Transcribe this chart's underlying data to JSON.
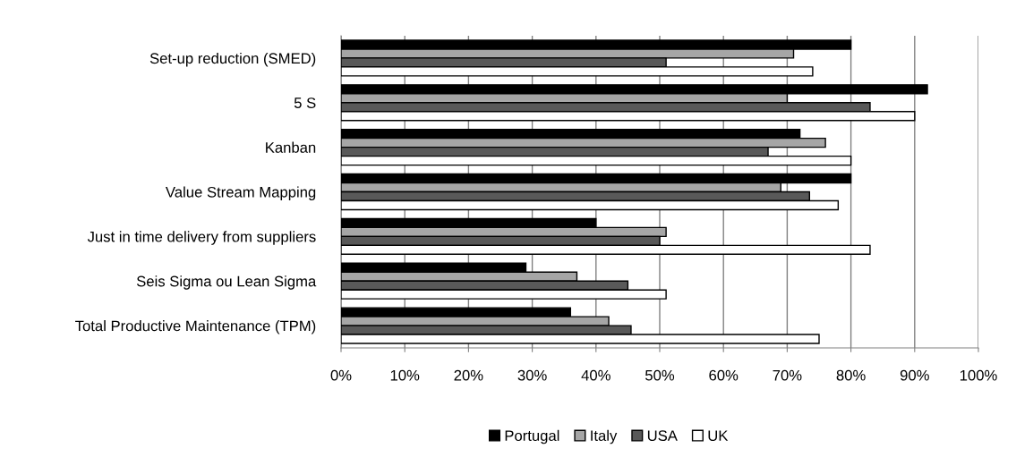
{
  "chart_data": {
    "type": "bar",
    "orientation": "horizontal",
    "categories": [
      "Set-up reduction (SMED)",
      "5 S",
      "Kanban",
      "Value Stream Mapping",
      "Just in time delivery from suppliers",
      "Seis Sigma ou Lean Sigma",
      "Total Productive Maintenance (TPM)"
    ],
    "series": [
      {
        "name": "Portugal",
        "color": "#000000",
        "values": [
          80,
          92,
          72,
          80,
          40,
          29,
          36
        ]
      },
      {
        "name": "Italy",
        "color": "#a6a6a6",
        "values": [
          71,
          70,
          76,
          69,
          51,
          37,
          42
        ]
      },
      {
        "name": "USA",
        "color": "#595959",
        "values": [
          51,
          83,
          67,
          73.5,
          50,
          45,
          45.5
        ]
      },
      {
        "name": "UK",
        "color": "#ffffff",
        "values": [
          74,
          90,
          80,
          78,
          83,
          51,
          75
        ]
      }
    ],
    "xlim": [
      0,
      100
    ],
    "xticks": [
      {
        "value": 0,
        "label": "0%"
      },
      {
        "value": 10,
        "label": "10%"
      },
      {
        "value": 20,
        "label": "20%"
      },
      {
        "value": 30,
        "label": "30%"
      },
      {
        "value": 40,
        "label": "40%"
      },
      {
        "value": 50,
        "label": "50%"
      },
      {
        "value": 60,
        "label": "60%"
      },
      {
        "value": 70,
        "label": "70%"
      },
      {
        "value": 80,
        "label": "80%"
      },
      {
        "value": 90,
        "label": "90%"
      },
      {
        "value": 100,
        "label": "100%"
      }
    ],
    "grid": "x",
    "legend": "bottom"
  }
}
